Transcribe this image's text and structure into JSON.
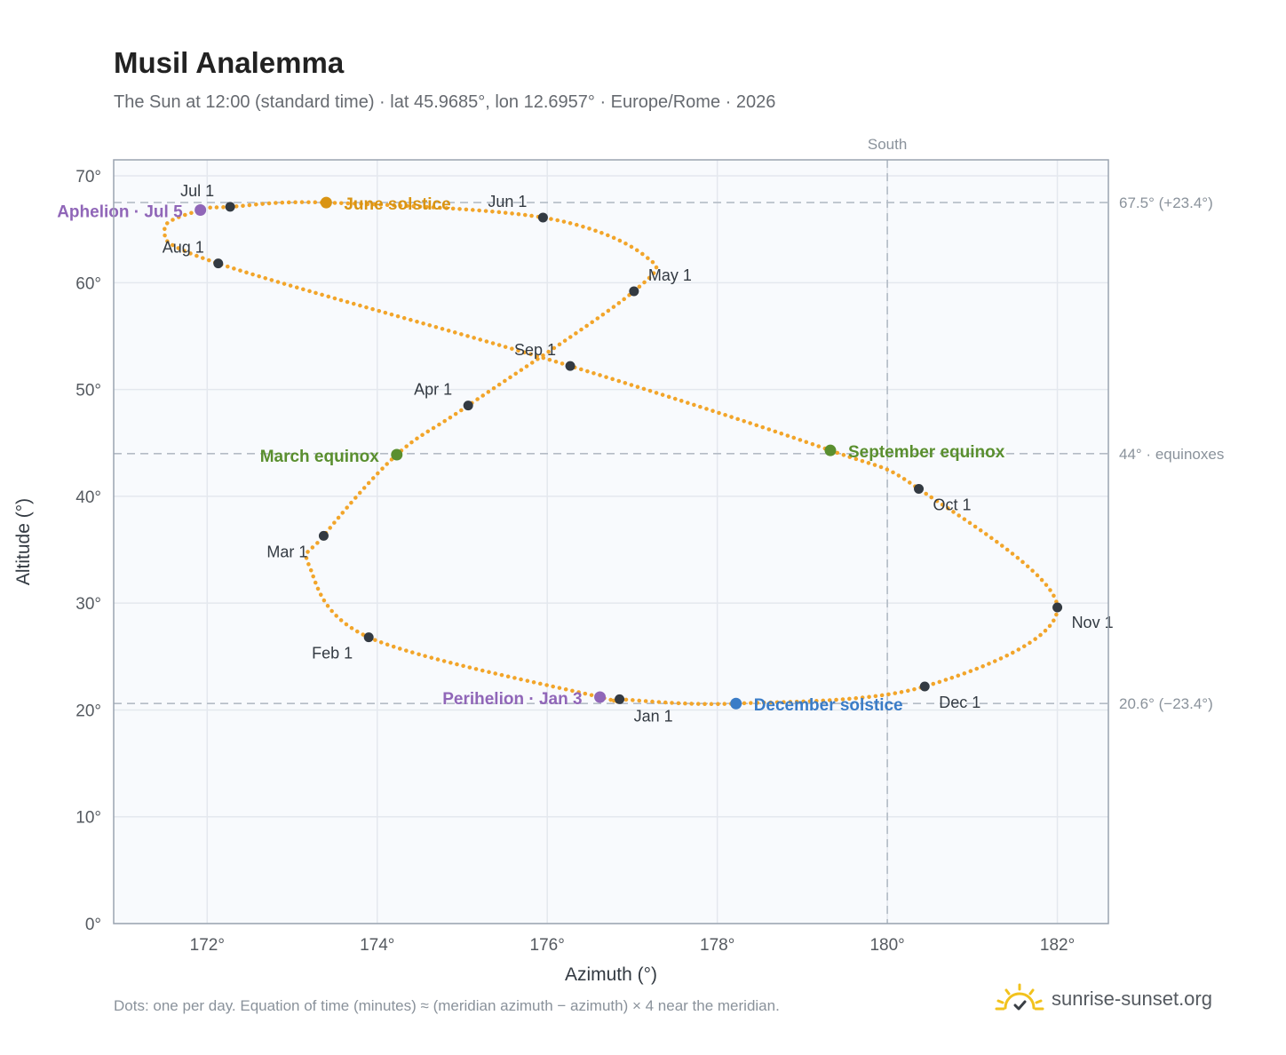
{
  "title": "Musil Analemma",
  "subtitle": "The Sun at 12:00 (standard time) · lat 45.9685°, lon 12.6957° · Europe/Rome · 2026",
  "footnote": "Dots: one per day. Equation of time (minutes) ≈ (meridian azimuth − azimuth) × 4 near the meridian.",
  "brand": {
    "name": "sunrise-sunset.org",
    "icon": "sun-check-icon"
  },
  "colors": {
    "path": "#f2a52a",
    "month_dot": "#333a42",
    "june_solstice": "#d99413",
    "december_solstice": "#3a7cc7",
    "equinox": "#5a8f2f",
    "apsis": "#9066b8",
    "ref_line": "#b4bcc6",
    "grid": "#e4e8ee",
    "plot_bg": "#f8fafd",
    "frame": "#9aa4b0"
  },
  "chart_data": {
    "type": "scatter",
    "xlabel": "Azimuth (°)",
    "ylabel": "Altitude (°)",
    "xlim": [
      170.9,
      182.6
    ],
    "ylim": [
      0,
      71.5
    ],
    "xticks": [
      172,
      174,
      176,
      178,
      180,
      182
    ],
    "xtick_labels": [
      "172°",
      "174°",
      "176°",
      "178°",
      "180°",
      "182°"
    ],
    "yticks": [
      0,
      10,
      20,
      30,
      40,
      50,
      60,
      70
    ],
    "ytick_labels": [
      "0°",
      "10°",
      "20°",
      "30°",
      "40°",
      "50°",
      "60°",
      "70°"
    ],
    "grid": true,
    "meridian": {
      "x": 180,
      "label": "South"
    },
    "reference_lines": [
      {
        "y": 67.5,
        "label": "67.5° (+23.4°)"
      },
      {
        "y": 44.0,
        "label": "44° · equinoxes"
      },
      {
        "y": 20.6,
        "label": "20.6° (−23.4°)"
      }
    ],
    "months": [
      {
        "label": "Jan 1",
        "az": 176.85,
        "alt": 21.0
      },
      {
        "label": "Feb 1",
        "az": 173.9,
        "alt": 26.8
      },
      {
        "label": "Mar 1",
        "az": 173.37,
        "alt": 36.3
      },
      {
        "label": "Apr 1",
        "az": 175.07,
        "alt": 48.5
      },
      {
        "label": "May 1",
        "az": 177.02,
        "alt": 59.2
      },
      {
        "label": "Jun 1",
        "az": 175.95,
        "alt": 66.1
      },
      {
        "label": "Jul 1",
        "az": 172.27,
        "alt": 67.1
      },
      {
        "label": "Aug 1",
        "az": 172.13,
        "alt": 61.8
      },
      {
        "label": "Sep 1",
        "az": 176.27,
        "alt": 52.2
      },
      {
        "label": "Oct 1",
        "az": 180.37,
        "alt": 40.7
      },
      {
        "label": "Nov 1",
        "az": 182.0,
        "alt": 29.6
      },
      {
        "label": "Dec 1",
        "az": 180.44,
        "alt": 22.2
      }
    ],
    "events": [
      {
        "label": "June solstice",
        "az": 173.4,
        "alt": 67.5,
        "color_key": "june_solstice"
      },
      {
        "label": "December solstice",
        "az": 178.22,
        "alt": 20.6,
        "color_key": "december_solstice"
      },
      {
        "label": "March equinox",
        "az": 174.23,
        "alt": 43.9,
        "color_key": "equinox"
      },
      {
        "label": "September equinox",
        "az": 179.33,
        "alt": 44.3,
        "color_key": "equinox"
      },
      {
        "label": "Aphelion · Jul 5",
        "az": 171.92,
        "alt": 66.8,
        "color_key": "apsis"
      },
      {
        "label": "Perihelion · Jan 3",
        "az": 176.62,
        "alt": 21.2,
        "color_key": "apsis"
      }
    ],
    "path_series": {
      "name": "",
      "points": [
        [
          176.85,
          21.0
        ],
        [
          178.22,
          20.6
        ],
        [
          180.44,
          22.2
        ],
        [
          182.0,
          29.6
        ],
        [
          180.37,
          40.7
        ],
        [
          179.33,
          44.3
        ],
        [
          176.27,
          52.2
        ],
        [
          172.13,
          61.8
        ],
        [
          171.5,
          65.0
        ],
        [
          171.92,
          66.8
        ],
        [
          172.27,
          67.1
        ],
        [
          173.4,
          67.5
        ],
        [
          175.95,
          66.1
        ],
        [
          177.15,
          62.5
        ],
        [
          177.02,
          59.2
        ],
        [
          175.07,
          48.5
        ],
        [
          174.23,
          43.9
        ],
        [
          173.37,
          36.3
        ],
        [
          173.2,
          33.5
        ],
        [
          173.9,
          26.8
        ],
        [
          176.62,
          21.2
        ],
        [
          176.85,
          21.0
        ]
      ]
    }
  }
}
